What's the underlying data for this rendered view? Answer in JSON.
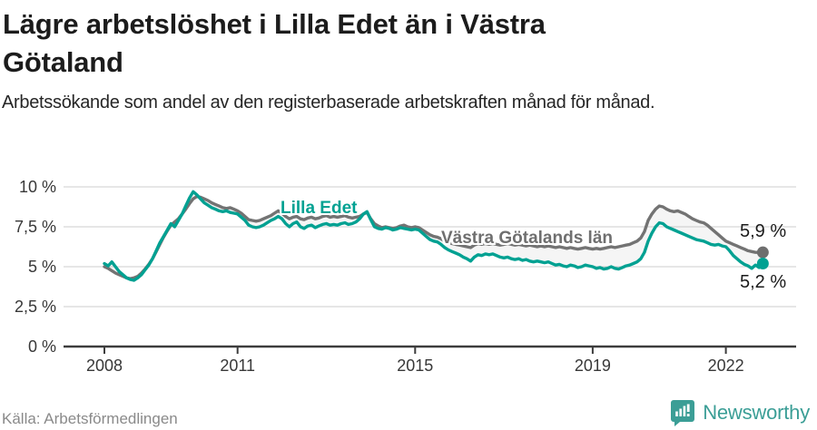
{
  "header": {
    "title_line1": "Lägre arbetslöshet i Lilla Edet än i Västra",
    "title_line2": "Götaland",
    "subtitle": "Arbetssökande som andel av den registerbaserade arbetskraften månad för månad."
  },
  "footer": {
    "source": "Källa: Arbetsförmedlingen",
    "brand_name": "Newsworthy",
    "brand_icon": "newsworthy-speech-bubble-bar-chart-icon"
  },
  "colors": {
    "lilla_edet_line": "#00a192",
    "vastra_gotaland_line": "#737373",
    "grid": "#d8d8d8",
    "axis": "#3d3d3d",
    "tick_text": "#383838",
    "band_fill": "#999999",
    "brand_teal": "#3b9e96",
    "end_dot_le": "#00a192",
    "end_dot_vg": "#6e6e6e"
  },
  "chart_data": {
    "type": "line",
    "title": "Lägre arbetslöshet i Lilla Edet än i Västra Götaland",
    "xlabel": "",
    "ylabel": "Arbetssökande som andel av den registerbaserade arbetskraften",
    "x_start_year": 2008,
    "months_per_point": 1,
    "x_end": "2022-11",
    "ylim": [
      0,
      10.5
    ],
    "grid": "horizontal",
    "y_ticks": [
      {
        "label": "0 %",
        "value": 0
      },
      {
        "label": "2,5 %",
        "value": 2.5
      },
      {
        "label": "5 %",
        "value": 5
      },
      {
        "label": "7,5 %",
        "value": 7.5
      },
      {
        "label": "10 %",
        "value": 10
      }
    ],
    "x_ticks": [
      {
        "label": "2008",
        "offset_years": 0
      },
      {
        "label": "2011",
        "offset_years": 3
      },
      {
        "label": "2015",
        "offset_years": 7
      },
      {
        "label": "2019",
        "offset_years": 11
      },
      {
        "label": "2022",
        "offset_years": 14
      }
    ],
    "series": [
      {
        "name": "Västra Götalands län",
        "end_label": "5,9 %",
        "end_value": 5.9,
        "values": [
          5.0,
          4.9,
          4.75,
          4.6,
          4.5,
          4.4,
          4.3,
          4.25,
          4.3,
          4.4,
          4.6,
          4.85,
          5.15,
          5.5,
          5.95,
          6.4,
          6.85,
          7.25,
          7.6,
          7.8,
          8.0,
          8.3,
          8.6,
          8.95,
          9.25,
          9.4,
          9.35,
          9.25,
          9.15,
          9.0,
          8.9,
          8.8,
          8.7,
          8.65,
          8.7,
          8.6,
          8.5,
          8.35,
          8.15,
          7.95,
          7.9,
          7.85,
          7.9,
          8.0,
          8.1,
          8.2,
          8.35,
          8.5,
          8.35,
          8.15,
          8.0,
          8.1,
          8.15,
          8.0,
          7.95,
          8.05,
          8.1,
          8.0,
          8.05,
          8.15,
          8.2,
          8.1,
          8.15,
          8.1,
          8.15,
          8.2,
          8.1,
          8.05,
          8.1,
          8.15,
          8.3,
          8.4,
          8.0,
          7.7,
          7.55,
          7.45,
          7.5,
          7.45,
          7.4,
          7.45,
          7.55,
          7.6,
          7.5,
          7.45,
          7.5,
          7.45,
          7.3,
          7.15,
          7.0,
          6.9,
          6.85,
          6.75,
          6.6,
          6.5,
          6.45,
          6.4,
          6.35,
          6.3,
          6.25,
          6.2,
          6.35,
          6.45,
          6.4,
          6.45,
          6.4,
          6.45,
          6.4,
          6.35,
          6.4,
          6.45,
          6.4,
          6.35,
          6.4,
          6.35,
          6.3,
          6.35,
          6.3,
          6.25,
          6.3,
          6.25,
          6.3,
          6.25,
          6.2,
          6.25,
          6.2,
          6.15,
          6.2,
          6.15,
          6.1,
          6.15,
          6.2,
          6.15,
          6.1,
          6.15,
          6.1,
          6.15,
          6.2,
          6.25,
          6.2,
          6.25,
          6.3,
          6.35,
          6.4,
          6.5,
          6.6,
          6.8,
          7.2,
          7.9,
          8.3,
          8.6,
          8.8,
          8.75,
          8.6,
          8.5,
          8.45,
          8.5,
          8.4,
          8.3,
          8.15,
          8.0,
          7.9,
          7.8,
          7.75,
          7.6,
          7.4,
          7.2,
          7.0,
          6.8,
          6.6,
          6.5,
          6.4,
          6.3,
          6.2,
          6.1,
          6.0,
          5.95,
          5.9,
          5.9,
          5.9
        ]
      },
      {
        "name": "Lilla Edet",
        "end_label": "5,2 %",
        "end_value": 5.2,
        "values": [
          5.2,
          5.05,
          5.3,
          5.0,
          4.7,
          4.5,
          4.3,
          4.2,
          4.15,
          4.3,
          4.5,
          4.8,
          5.1,
          5.5,
          6.0,
          6.5,
          6.9,
          7.3,
          7.7,
          7.5,
          7.9,
          8.3,
          8.8,
          9.3,
          9.7,
          9.5,
          9.25,
          9.0,
          8.85,
          8.7,
          8.6,
          8.5,
          8.45,
          8.5,
          8.4,
          8.35,
          8.3,
          8.1,
          7.9,
          7.6,
          7.5,
          7.45,
          7.5,
          7.6,
          7.75,
          7.9,
          8.0,
          8.15,
          8.0,
          7.7,
          7.5,
          7.7,
          7.8,
          7.5,
          7.4,
          7.55,
          7.6,
          7.45,
          7.55,
          7.65,
          7.7,
          7.6,
          7.65,
          7.6,
          7.7,
          7.75,
          7.65,
          7.7,
          7.8,
          8.0,
          8.3,
          8.45,
          7.95,
          7.5,
          7.4,
          7.35,
          7.45,
          7.4,
          7.3,
          7.35,
          7.45,
          7.4,
          7.35,
          7.3,
          7.35,
          7.3,
          7.1,
          6.9,
          6.7,
          6.6,
          6.55,
          6.4,
          6.2,
          6.05,
          5.95,
          5.85,
          5.75,
          5.6,
          5.5,
          5.35,
          5.6,
          5.75,
          5.7,
          5.8,
          5.75,
          5.8,
          5.7,
          5.6,
          5.55,
          5.6,
          5.5,
          5.45,
          5.5,
          5.4,
          5.45,
          5.35,
          5.3,
          5.35,
          5.3,
          5.25,
          5.3,
          5.2,
          5.1,
          5.15,
          5.05,
          5.0,
          5.1,
          5.05,
          4.95,
          5.0,
          5.1,
          5.05,
          5.0,
          4.9,
          4.95,
          4.85,
          4.9,
          5.0,
          4.9,
          4.85,
          4.95,
          5.05,
          5.1,
          5.2,
          5.3,
          5.5,
          5.9,
          6.6,
          7.1,
          7.5,
          7.75,
          7.7,
          7.5,
          7.4,
          7.3,
          7.2,
          7.1,
          7.0,
          6.9,
          6.8,
          6.7,
          6.65,
          6.6,
          6.5,
          6.4,
          6.35,
          6.4,
          6.3,
          6.25,
          6.0,
          5.7,
          5.5,
          5.3,
          5.15,
          5.05,
          4.9,
          5.1,
          4.95,
          5.2
        ]
      }
    ]
  }
}
